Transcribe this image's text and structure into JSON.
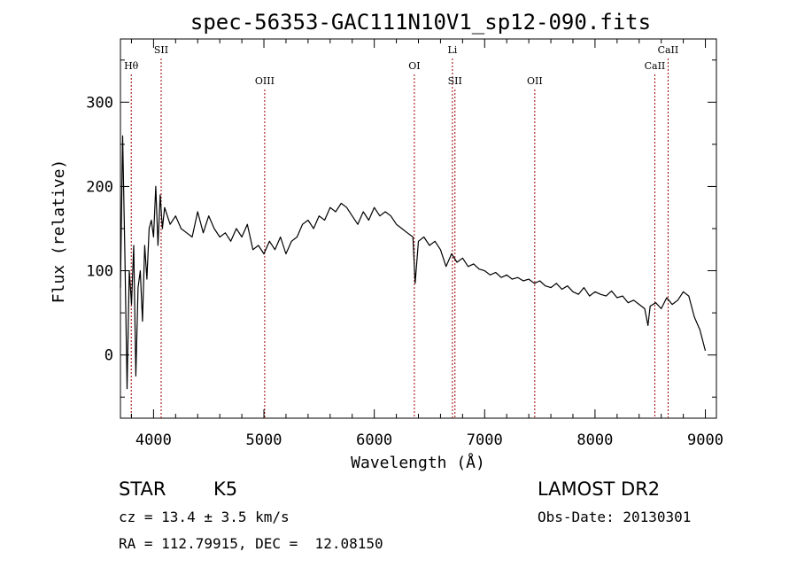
{
  "chart_data": {
    "type": "line",
    "title": "spec-56353-GAC111N10V1_sp12-090.fits",
    "xlabel": "Wavelength (Å)",
    "ylabel": "Flux (relative)",
    "xlim": [
      3700,
      9100
    ],
    "ylim": [
      -75,
      375
    ],
    "x_ticks": [
      4000,
      5000,
      6000,
      7000,
      8000,
      9000
    ],
    "y_ticks": [
      0,
      100,
      200,
      300
    ],
    "grid": false,
    "line_color": "#000000",
    "marker_color": "#990000",
    "lines": [
      {
        "label": "Hθ",
        "wavelength": 3798,
        "row": 1
      },
      {
        "label": "SII",
        "wavelength": 4069,
        "row": 0
      },
      {
        "label": "OIII",
        "wavelength": 5007,
        "row": 2
      },
      {
        "label": "OI",
        "wavelength": 6363,
        "row": 1
      },
      {
        "label": "Li",
        "wavelength": 6708,
        "row": 0
      },
      {
        "label": "SII",
        "wavelength": 6731,
        "row": 2
      },
      {
        "label": "OII",
        "wavelength": 7454,
        "row": 2
      },
      {
        "label": "CaII",
        "wavelength": 8542,
        "row": 1
      },
      {
        "label": "CaII",
        "wavelength": 8662,
        "row": 0
      }
    ],
    "series": [
      {
        "x": [
          3700,
          3720,
          3740,
          3760,
          3780,
          3800,
          3820,
          3840,
          3860,
          3880,
          3900,
          3920,
          3940,
          3960,
          3980,
          4000,
          4020,
          4040,
          4060,
          4080,
          4100,
          4150,
          4200,
          4250,
          4300,
          4350,
          4400,
          4450,
          4500,
          4550,
          4600,
          4650,
          4700,
          4750,
          4800,
          4850,
          4900,
          4950,
          5000,
          5050,
          5100,
          5150,
          5200,
          5250,
          5300,
          5350,
          5400,
          5450,
          5500,
          5550,
          5600,
          5650,
          5700,
          5750,
          5800,
          5850,
          5900,
          5950,
          6000,
          6050,
          6100,
          6150,
          6200,
          6250,
          6300,
          6350,
          6370,
          6400,
          6450,
          6500,
          6550,
          6600,
          6650,
          6700,
          6750,
          6800,
          6850,
          6900,
          6950,
          7000,
          7050,
          7100,
          7150,
          7200,
          7250,
          7300,
          7350,
          7400,
          7450,
          7500,
          7550,
          7600,
          7650,
          7700,
          7750,
          7800,
          7850,
          7900,
          7950,
          8000,
          8050,
          8100,
          8150,
          8200,
          8250,
          8300,
          8350,
          8400,
          8450,
          8480,
          8500,
          8550,
          8600,
          8650,
          8700,
          8750,
          8800,
          8850,
          8900,
          8950,
          9000
        ],
        "y": [
          80,
          260,
          120,
          -40,
          100,
          60,
          130,
          -25,
          80,
          100,
          40,
          130,
          90,
          150,
          160,
          140,
          200,
          130,
          190,
          150,
          175,
          155,
          165,
          150,
          145,
          140,
          170,
          145,
          165,
          150,
          140,
          145,
          135,
          150,
          140,
          155,
          125,
          130,
          120,
          135,
          125,
          140,
          120,
          135,
          140,
          155,
          160,
          150,
          165,
          160,
          175,
          170,
          180,
          175,
          165,
          155,
          170,
          160,
          175,
          165,
          170,
          165,
          155,
          150,
          145,
          140,
          85,
          135,
          140,
          130,
          135,
          125,
          105,
          120,
          110,
          115,
          105,
          108,
          102,
          100,
          95,
          98,
          92,
          95,
          90,
          92,
          88,
          90,
          85,
          88,
          82,
          80,
          85,
          78,
          82,
          75,
          72,
          80,
          70,
          75,
          72,
          70,
          76,
          68,
          70,
          62,
          65,
          60,
          55,
          35,
          58,
          62,
          55,
          68,
          60,
          65,
          75,
          70,
          45,
          30,
          5
        ]
      }
    ]
  },
  "info": {
    "class_label": "STAR",
    "subclass_label": "K5",
    "redshift": "cz = 13.4 ± 3.5 km/s",
    "coordinates": "RA = 112.79915, DEC =  12.08150",
    "survey": "LAMOST DR2",
    "obs_date": "Obs-Date: 20130301"
  }
}
